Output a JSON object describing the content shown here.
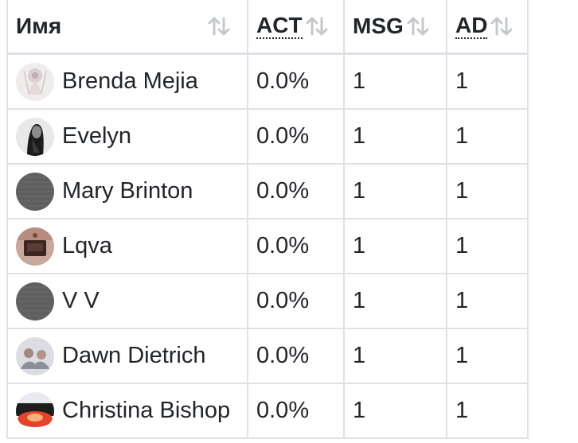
{
  "table": {
    "headers": {
      "name": "Имя",
      "act": "ACT",
      "msg": "MSG",
      "ad": "AD"
    },
    "sort_icon": "sort-arrows-icon",
    "rows": [
      {
        "name": "Brenda Mejia",
        "act": "0.0%",
        "msg": "1",
        "ad": "1",
        "avatar": "photo-avatar"
      },
      {
        "name": "Evelyn",
        "act": "0.0%",
        "msg": "1",
        "ad": "1",
        "avatar": "photo-avatar"
      },
      {
        "name": "Mary Brinton",
        "act": "0.0%",
        "msg": "1",
        "ad": "1",
        "avatar": "placeholder-avatar"
      },
      {
        "name": "Lqva",
        "act": "0.0%",
        "msg": "1",
        "ad": "1",
        "avatar": "photo-avatar"
      },
      {
        "name": "V V",
        "act": "0.0%",
        "msg": "1",
        "ad": "1",
        "avatar": "placeholder-avatar"
      },
      {
        "name": "Dawn Dietrich",
        "act": "0.0%",
        "msg": "1",
        "ad": "1",
        "avatar": "photo-avatar"
      },
      {
        "name": "Christina Bishop",
        "act": "0.0%",
        "msg": "1",
        "ad": "1",
        "avatar": "photo-avatar"
      }
    ]
  }
}
